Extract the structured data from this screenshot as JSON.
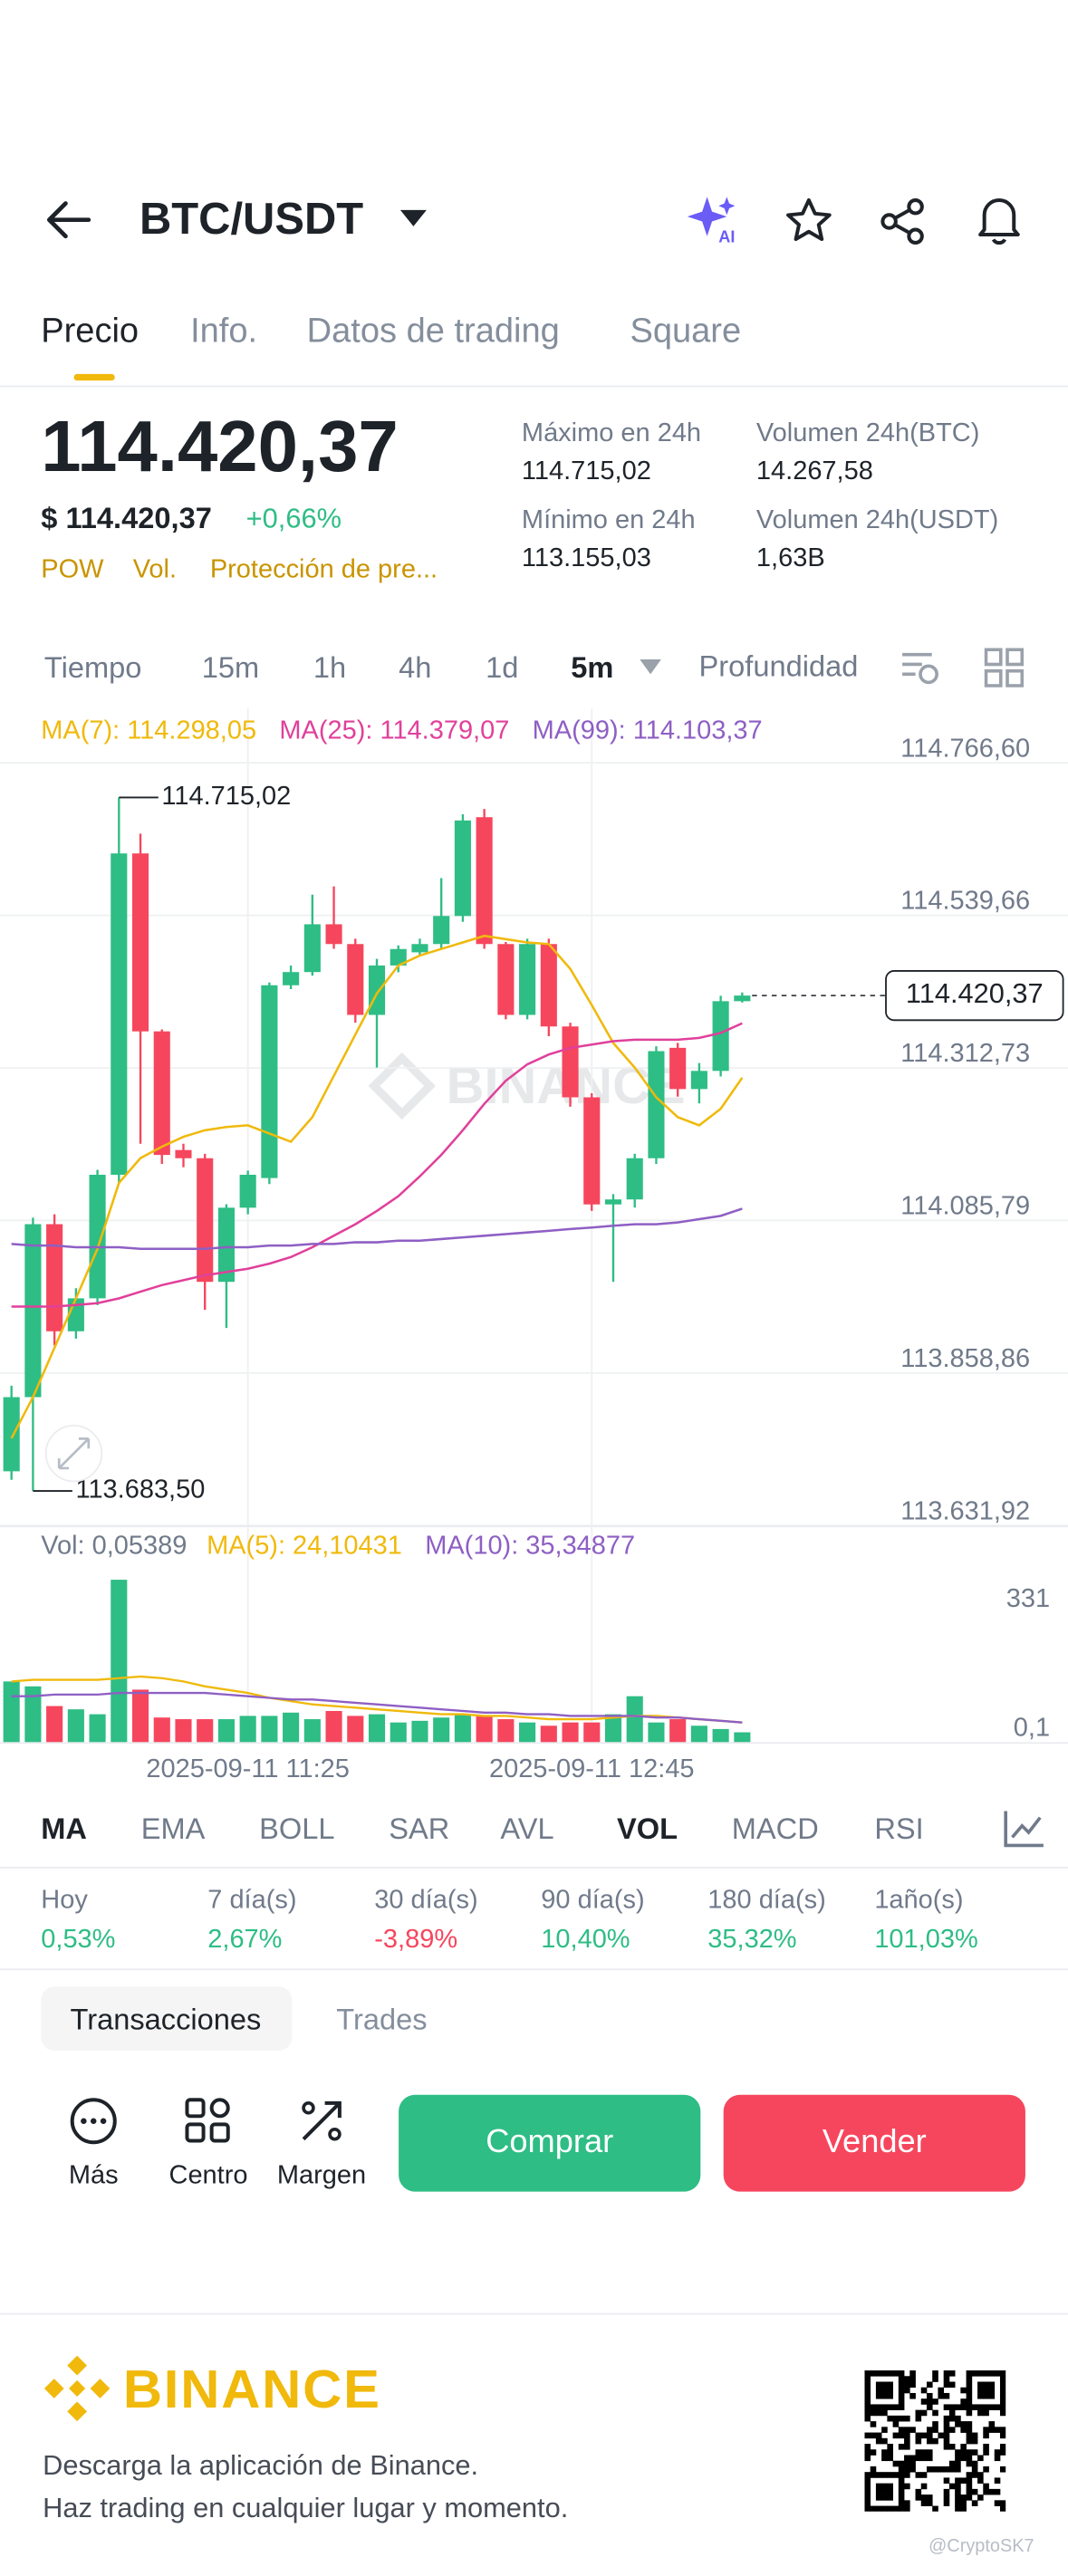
{
  "header": {
    "pair": "BTC/USDT"
  },
  "tabs": [
    "Precio",
    "Info.",
    "Datos de trading",
    "Square"
  ],
  "ticker": {
    "price": "114.420,37",
    "price_usd": "$ 114.420,37",
    "change": "+0,66%",
    "tags": [
      "POW",
      "Vol.",
      "Protección de pre..."
    ]
  },
  "stats": [
    {
      "label": "Máximo en 24h",
      "value": "114.715,02"
    },
    {
      "label": "Mínimo en 24h",
      "value": "113.155,03"
    },
    {
      "label": "Volumen 24h(BTC)",
      "value": "14.267,58"
    },
    {
      "label": "Volumen 24h(USDT)",
      "value": "1,63B"
    }
  ],
  "intervals": [
    "Tiempo",
    "15m",
    "1h",
    "4h",
    "1d",
    "5m",
    "Profundidad"
  ],
  "chart_data": {
    "type": "candlestick",
    "watermark": "BINANCE",
    "up_color": "#2ebd85",
    "down_color": "#f6465d",
    "categories": [
      null,
      null,
      null,
      null,
      null,
      null,
      null,
      null,
      null,
      null,
      null,
      "2025-09-11 11:25",
      null,
      null,
      null,
      null,
      null,
      null,
      null,
      null,
      null,
      null,
      null,
      null,
      null,
      null,
      null,
      "2025-09-11 12:45",
      null,
      null,
      null,
      null,
      null,
      null,
      null
    ],
    "candles": {
      "open": [
        113712.7,
        113823.0,
        114080.3,
        113921.0,
        113970.0,
        114153.8,
        114631.8,
        114367.1,
        114190.6,
        114178.4,
        113994.5,
        114104.8,
        114148.9,
        114435.7,
        114455.3,
        114526.4,
        114497.0,
        114391.6,
        114465.1,
        114484.7,
        114497.0,
        114538.7,
        114685.7,
        114497.0,
        114391.6,
        114497.0,
        114374.4,
        114269.0,
        114109.7,
        114117.1,
        114178.4,
        114342.6,
        114281.3,
        114308.3,
        114412.0
      ],
      "high": [
        113840,
        114090,
        114095,
        113985,
        114161.2,
        114715.02,
        114661.2,
        114370,
        114200,
        114185,
        114110,
        114160,
        114440,
        114465,
        114570.5,
        114582.8,
        114505,
        114475,
        114495,
        114505,
        114595.0,
        114690,
        114698.0,
        114500,
        114505,
        114505,
        114380,
        114275,
        114125,
        114185,
        114345,
        114350,
        114320,
        114420,
        114425
      ],
      "low": [
        113700,
        113683.5,
        113900,
        113910,
        113960,
        114140,
        114200,
        114170,
        114165,
        113952.9,
        113925.9,
        114095,
        114140,
        114430,
        114450,
        114490,
        114380,
        114313.2,
        114455,
        114480,
        114490,
        114530,
        114490,
        114385,
        114385,
        114360,
        114255,
        114100,
        113994.5,
        114105,
        114170,
        114270,
        114260,
        114300,
        114410
      ],
      "close": [
        113823.0,
        114080.3,
        113921.0,
        113970.0,
        114153.8,
        114631.8,
        114367.1,
        114183.3,
        114178.4,
        113994.5,
        114104.8,
        114153.8,
        114435.7,
        114455.3,
        114526.4,
        114497.0,
        114391.6,
        114465.1,
        114489.6,
        114497.0,
        114538.7,
        114680.8,
        114497.0,
        114391.6,
        114497.0,
        114374.4,
        114269.0,
        114109.7,
        114117.1,
        114178.4,
        114337.7,
        114281.3,
        114308.3,
        114412.0,
        114420.37
      ]
    },
    "series": [
      {
        "name": "MA(7): 114.298,05",
        "color": "#f0b90b",
        "values": [
          113761.7,
          113823.0,
          113896.5,
          113970.0,
          114043.6,
          114141.6,
          114178.4,
          114195.5,
          114210.2,
          114220.0,
          114224.9,
          114227.4,
          114215.1,
          114202.9,
          114239.6,
          114300.9,
          114362.2,
          114423.5,
          114465.1,
          114479.8,
          114489.6,
          114499.4,
          114509.2,
          114504.3,
          114499.4,
          114497.0,
          114460.2,
          114406.3,
          114349.9,
          114313.2,
          114269.0,
          114239.6,
          114227.4,
          114251.9,
          114298.05
        ]
      },
      {
        "name": "MA(25): 114.379,07",
        "color": "#e0409b",
        "values": [
          113957.8,
          113957.8,
          113957.8,
          113960.2,
          113962.7,
          113970.0,
          113979.8,
          113989.6,
          113997.0,
          114004.3,
          114009.2,
          114014.1,
          114021.5,
          114031.3,
          114046.0,
          114063.2,
          114080.3,
          114099.9,
          114122.0,
          114151.4,
          114183.3,
          114220.0,
          114259.2,
          114293.6,
          114318.1,
          114332.8,
          114342.6,
          114347.5,
          114352.4,
          114354.8,
          114354.8,
          114354.8,
          114357.3,
          114364.6,
          114379.07
        ]
      },
      {
        "name": "MA(99): 114.103,37",
        "color": "#8e5fc4",
        "values": [
          114050.9,
          114048.5,
          114048.5,
          114046.0,
          114046.0,
          114046.0,
          114043.6,
          114043.6,
          114043.6,
          114043.6,
          114046.0,
          114046.0,
          114048.5,
          114048.5,
          114050.9,
          114050.9,
          114053.4,
          114053.4,
          114055.8,
          114055.8,
          114058.3,
          114060.7,
          114063.2,
          114065.6,
          114068.1,
          114070.5,
          114073.0,
          114075.4,
          114077.9,
          114080.3,
          114080.3,
          114082.8,
          114087.7,
          114092.6,
          114103.37
        ]
      }
    ],
    "ylim": [
      113631.92,
      114766.6
    ],
    "yticks": [
      {
        "value": 114766.6,
        "label": "114.766,60"
      },
      {
        "value": 114539.66,
        "label": "114.539,66"
      },
      {
        "value": 114312.73,
        "label": "114.312,73"
      },
      {
        "value": 114085.79,
        "label": "114.085,79"
      },
      {
        "value": 113858.86,
        "label": "113.858,86"
      },
      {
        "value": 113631.92,
        "label": "113.631,92"
      }
    ],
    "last_price": {
      "value": 114420.37,
      "label": "114.420,37"
    },
    "high_label": {
      "value": 114715.02,
      "label": "114.715,02"
    },
    "low_label": {
      "value": 113683.5,
      "label": "113.683,50"
    },
    "volume": {
      "title": "Vol: 0,05389",
      "ylim": [
        0,
        420
      ],
      "yticks": [
        331,
        {
          "value": 0.1,
          "label": "0,1"
        }
      ],
      "values": [
        155.4,
        142.8,
        92.4,
        84,
        71.4,
        415.8,
        134.4,
        63,
        58.8,
        58.8,
        58.8,
        67.2,
        67.2,
        75.6,
        58.8,
        79.8,
        67.2,
        71.4,
        50.4,
        54.6,
        63,
        71.4,
        67.2,
        58.8,
        50.4,
        42,
        50.4,
        50.4,
        71.4,
        117.6,
        50.4,
        58.8,
        42,
        33.6,
        25.2
      ],
      "series": [
        {
          "name": "MA(5): 24,10431",
          "color": "#f0b90b",
          "values": [
            155.4,
            159.6,
            159.6,
            159.6,
            159.6,
            163.8,
            168,
            163.8,
            155.4,
            142.8,
            134.4,
            126,
            113.4,
            105,
            96.6,
            92.4,
            88.2,
            84,
            79.8,
            75.6,
            71.4,
            71.4,
            67.2,
            67.2,
            63,
            58.8,
            58.8,
            58.8,
            63,
            67.2,
            67.2,
            63,
            58.8,
            54.6,
            50.4
          ]
        },
        {
          "name": "MA(10): 35,34877",
          "color": "#8e5fc4",
          "values": [
            117.6,
            117.6,
            121.8,
            121.8,
            121.8,
            126,
            126,
            126,
            126,
            126,
            121.8,
            117.6,
            113.4,
            109.2,
            109.2,
            105,
            100.8,
            96.6,
            92.4,
            88.2,
            84,
            79.8,
            75.6,
            75.6,
            71.4,
            71.4,
            67.2,
            67.2,
            67.2,
            67.2,
            63,
            63,
            58.8,
            54.6,
            50.4
          ]
        }
      ]
    }
  },
  "indicators": [
    "MA",
    "EMA",
    "BOLL",
    "SAR",
    "AVL",
    "VOL",
    "MACD",
    "RSI"
  ],
  "performance": [
    {
      "label": "Hoy",
      "value": "0,53%"
    },
    {
      "label": "7 día(s)",
      "value": "2,67%"
    },
    {
      "label": "30 día(s)",
      "value": "-3,89%"
    },
    {
      "label": "90 día(s)",
      "value": "10,40%"
    },
    {
      "label": "180 día(s)",
      "value": "35,32%"
    },
    {
      "label": "1año(s)",
      "value": "101,03%"
    }
  ],
  "order_tabs": [
    "Transacciones",
    "Trades"
  ],
  "actions": [
    "Más",
    "Centro",
    "Margen"
  ],
  "buttons": [
    "Comprar",
    "Vender"
  ],
  "footer": {
    "brand": "BINANCE",
    "lines": [
      "Descarga la aplicación de Binance.",
      "Haz trading en cualquier lugar y momento."
    ],
    "watermark": "@CryptoSK7"
  }
}
